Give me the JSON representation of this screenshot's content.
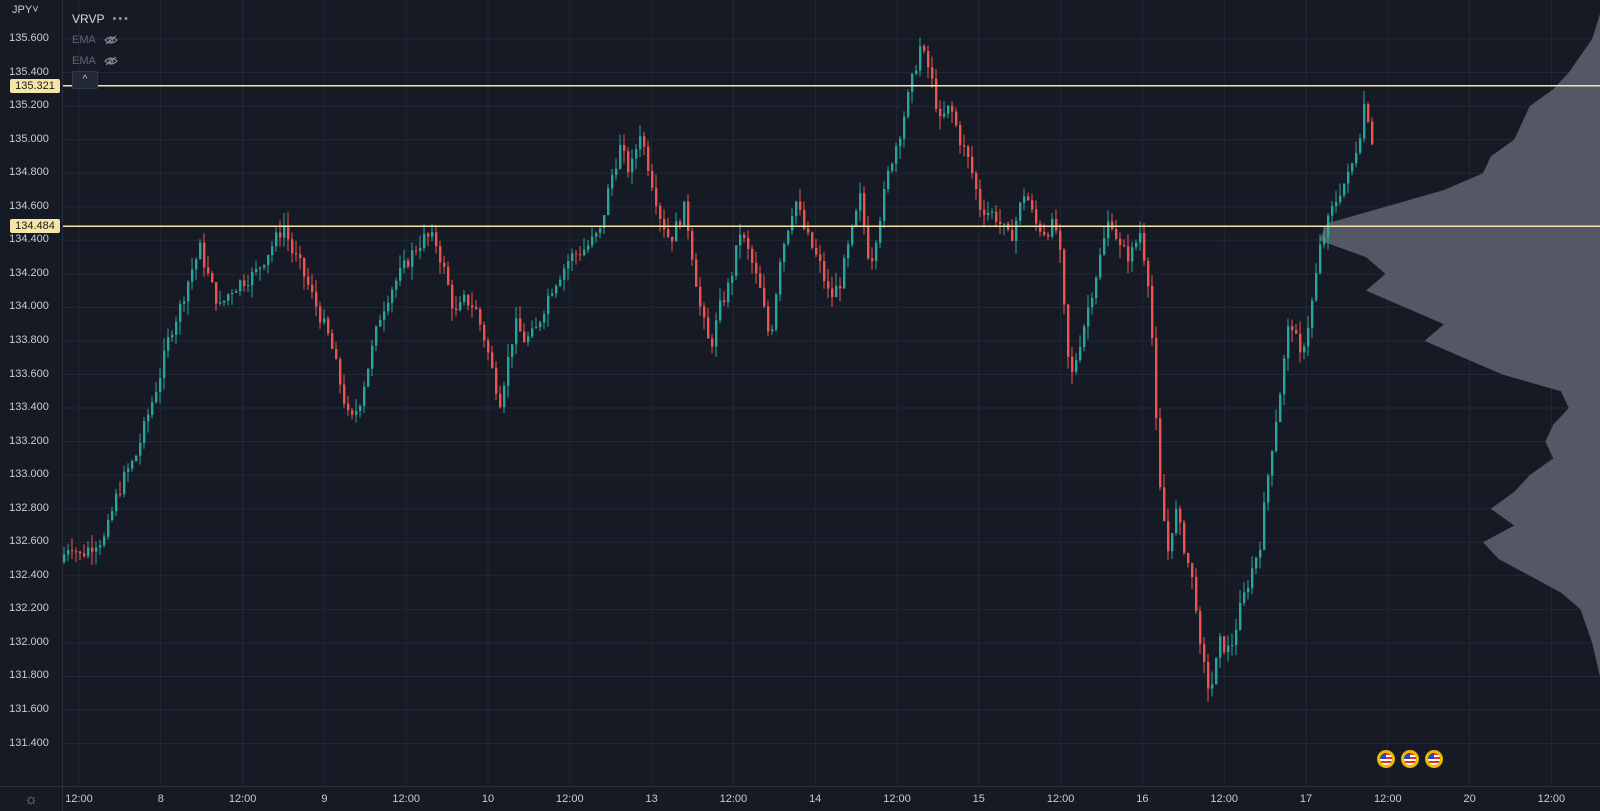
{
  "toolbar": {
    "symbol": "JPY",
    "symbol_caret": "˅",
    "indicators": [
      {
        "name": "VRVP",
        "menu": "•••",
        "hidden": false
      },
      {
        "name": "EMA",
        "hidden": true
      },
      {
        "name": "EMA",
        "hidden": true
      }
    ],
    "collapse_label": "^"
  },
  "colors": {
    "background": "#151a24",
    "grid": "#222836",
    "up_candle": "#26a69a",
    "down_candle": "#ef5350",
    "level_line": "#f5e6a8",
    "volume_profile": "#5f6470"
  },
  "settings_icon": "gear-icon",
  "event_flags": [
    "us-flag",
    "us-flag",
    "us-flag"
  ],
  "chart_data": {
    "type": "candlestick",
    "symbol": "JPY",
    "y_axis": {
      "ticks": [
        "135.600",
        "135.400",
        "135.200",
        "135.000",
        "134.800",
        "134.600",
        "134.400",
        "134.200",
        "134.000",
        "133.800",
        "133.600",
        "133.400",
        "133.200",
        "133.000",
        "132.800",
        "132.600",
        "132.400",
        "132.200",
        "132.000",
        "131.800",
        "131.600",
        "131.400"
      ],
      "range": [
        131.3,
        135.75
      ]
    },
    "x_axis": {
      "ticks": [
        "12:00",
        "8",
        "12:00",
        "9",
        "12:00",
        "10",
        "12:00",
        "13",
        "12:00",
        "14",
        "12:00",
        "15",
        "12:00",
        "16",
        "12:00",
        "17",
        "12:00",
        "20",
        "12:00"
      ]
    },
    "horizontal_levels": [
      {
        "price": 135.321,
        "label": "135.321"
      },
      {
        "price": 134.484,
        "label": "134.484"
      }
    ],
    "close_path": [
      [
        0,
        132.48
      ],
      [
        10,
        132.6
      ],
      [
        20,
        132.52
      ],
      [
        35,
        132.6
      ],
      [
        45,
        132.62
      ],
      [
        55,
        132.85
      ],
      [
        65,
        133.0
      ],
      [
        75,
        133.1
      ],
      [
        85,
        133.3
      ],
      [
        100,
        133.6
      ],
      [
        110,
        133.85
      ],
      [
        120,
        134.0
      ],
      [
        130,
        134.2
      ],
      [
        140,
        134.35
      ],
      [
        150,
        134.15
      ],
      [
        160,
        134.0
      ],
      [
        170,
        134.1
      ],
      [
        180,
        134.15
      ],
      [
        195,
        134.2
      ],
      [
        205,
        134.3
      ],
      [
        215,
        134.4
      ],
      [
        225,
        134.5
      ],
      [
        230,
        134.35
      ],
      [
        240,
        134.25
      ],
      [
        250,
        134.1
      ],
      [
        260,
        133.95
      ],
      [
        270,
        133.8
      ],
      [
        280,
        133.55
      ],
      [
        290,
        133.3
      ],
      [
        300,
        133.45
      ],
      [
        310,
        133.7
      ],
      [
        320,
        133.95
      ],
      [
        330,
        134.1
      ],
      [
        340,
        134.2
      ],
      [
        355,
        134.35
      ],
      [
        365,
        134.42
      ],
      [
        375,
        134.4
      ],
      [
        385,
        134.2
      ],
      [
        395,
        133.95
      ],
      [
        405,
        134.05
      ],
      [
        415,
        134.0
      ],
      [
        425,
        133.8
      ],
      [
        435,
        133.55
      ],
      [
        440,
        133.45
      ],
      [
        445,
        133.6
      ],
      [
        455,
        133.9
      ],
      [
        465,
        133.8
      ],
      [
        475,
        133.85
      ],
      [
        490,
        134.1
      ],
      [
        500,
        134.2
      ],
      [
        510,
        134.3
      ],
      [
        525,
        134.35
      ],
      [
        540,
        134.45
      ],
      [
        550,
        134.75
      ],
      [
        560,
        134.95
      ],
      [
        570,
        134.8
      ],
      [
        580,
        135.05
      ],
      [
        590,
        134.8
      ],
      [
        600,
        134.55
      ],
      [
        610,
        134.4
      ],
      [
        625,
        134.6
      ],
      [
        640,
        134.0
      ],
      [
        650,
        133.75
      ],
      [
        660,
        134.0
      ],
      [
        670,
        134.15
      ],
      [
        680,
        134.45
      ],
      [
        690,
        134.3
      ],
      [
        700,
        134.1
      ],
      [
        710,
        133.8
      ],
      [
        720,
        134.3
      ],
      [
        735,
        134.65
      ],
      [
        745,
        134.45
      ],
      [
        760,
        134.25
      ],
      [
        770,
        134.05
      ],
      [
        780,
        134.15
      ],
      [
        790,
        134.4
      ],
      [
        800,
        134.65
      ],
      [
        810,
        134.25
      ],
      [
        820,
        134.55
      ],
      [
        830,
        134.85
      ],
      [
        840,
        135.05
      ],
      [
        850,
        135.3
      ],
      [
        860,
        135.55
      ],
      [
        870,
        135.4
      ],
      [
        880,
        135.1
      ],
      [
        890,
        135.2
      ],
      [
        900,
        135.0
      ],
      [
        910,
        134.85
      ],
      [
        920,
        134.6
      ],
      [
        935,
        134.55
      ],
      [
        950,
        134.4
      ],
      [
        965,
        134.7
      ],
      [
        975,
        134.5
      ],
      [
        985,
        134.45
      ],
      [
        995,
        134.5
      ],
      [
        1000,
        134.3
      ],
      [
        1005,
        133.9
      ],
      [
        1010,
        133.55
      ],
      [
        1020,
        133.8
      ],
      [
        1030,
        134.05
      ],
      [
        1040,
        134.3
      ],
      [
        1050,
        134.55
      ],
      [
        1060,
        134.35
      ],
      [
        1070,
        134.3
      ],
      [
        1080,
        134.45
      ],
      [
        1090,
        134.1
      ],
      [
        1095,
        133.4
      ],
      [
        1100,
        132.9
      ],
      [
        1108,
        132.55
      ],
      [
        1115,
        132.8
      ],
      [
        1125,
        132.55
      ],
      [
        1135,
        132.3
      ],
      [
        1140,
        131.95
      ],
      [
        1150,
        131.7
      ],
      [
        1160,
        132.0
      ],
      [
        1170,
        131.95
      ],
      [
        1180,
        132.2
      ],
      [
        1190,
        132.4
      ],
      [
        1200,
        132.6
      ],
      [
        1210,
        133.1
      ],
      [
        1220,
        133.5
      ],
      [
        1230,
        133.95
      ],
      [
        1240,
        133.7
      ],
      [
        1250,
        133.95
      ],
      [
        1260,
        134.35
      ],
      [
        1270,
        134.55
      ],
      [
        1280,
        134.7
      ],
      [
        1290,
        134.8
      ],
      [
        1300,
        135.05
      ],
      [
        1305,
        135.25
      ],
      [
        1312,
        135.0
      ]
    ],
    "volume_profile": [
      [
        135.75,
        0
      ],
      [
        135.6,
        0.02
      ],
      [
        135.4,
        0.08
      ],
      [
        135.3,
        0.12
      ],
      [
        135.2,
        0.18
      ],
      [
        135.0,
        0.22
      ],
      [
        134.9,
        0.28
      ],
      [
        134.8,
        0.3
      ],
      [
        134.7,
        0.4
      ],
      [
        134.6,
        0.55
      ],
      [
        134.5,
        0.7
      ],
      [
        134.4,
        0.72
      ],
      [
        134.3,
        0.6
      ],
      [
        134.2,
        0.55
      ],
      [
        134.1,
        0.6
      ],
      [
        134.0,
        0.5
      ],
      [
        133.9,
        0.4
      ],
      [
        133.8,
        0.45
      ],
      [
        133.7,
        0.35
      ],
      [
        133.6,
        0.25
      ],
      [
        133.5,
        0.1
      ],
      [
        133.4,
        0.08
      ],
      [
        133.3,
        0.12
      ],
      [
        133.2,
        0.14
      ],
      [
        133.1,
        0.12
      ],
      [
        133.0,
        0.18
      ],
      [
        132.9,
        0.22
      ],
      [
        132.8,
        0.28
      ],
      [
        132.7,
        0.22
      ],
      [
        132.6,
        0.3
      ],
      [
        132.5,
        0.26
      ],
      [
        132.4,
        0.18
      ],
      [
        132.3,
        0.1
      ],
      [
        132.2,
        0.05
      ],
      [
        132.0,
        0.02
      ],
      [
        131.8,
        0.0
      ]
    ]
  }
}
